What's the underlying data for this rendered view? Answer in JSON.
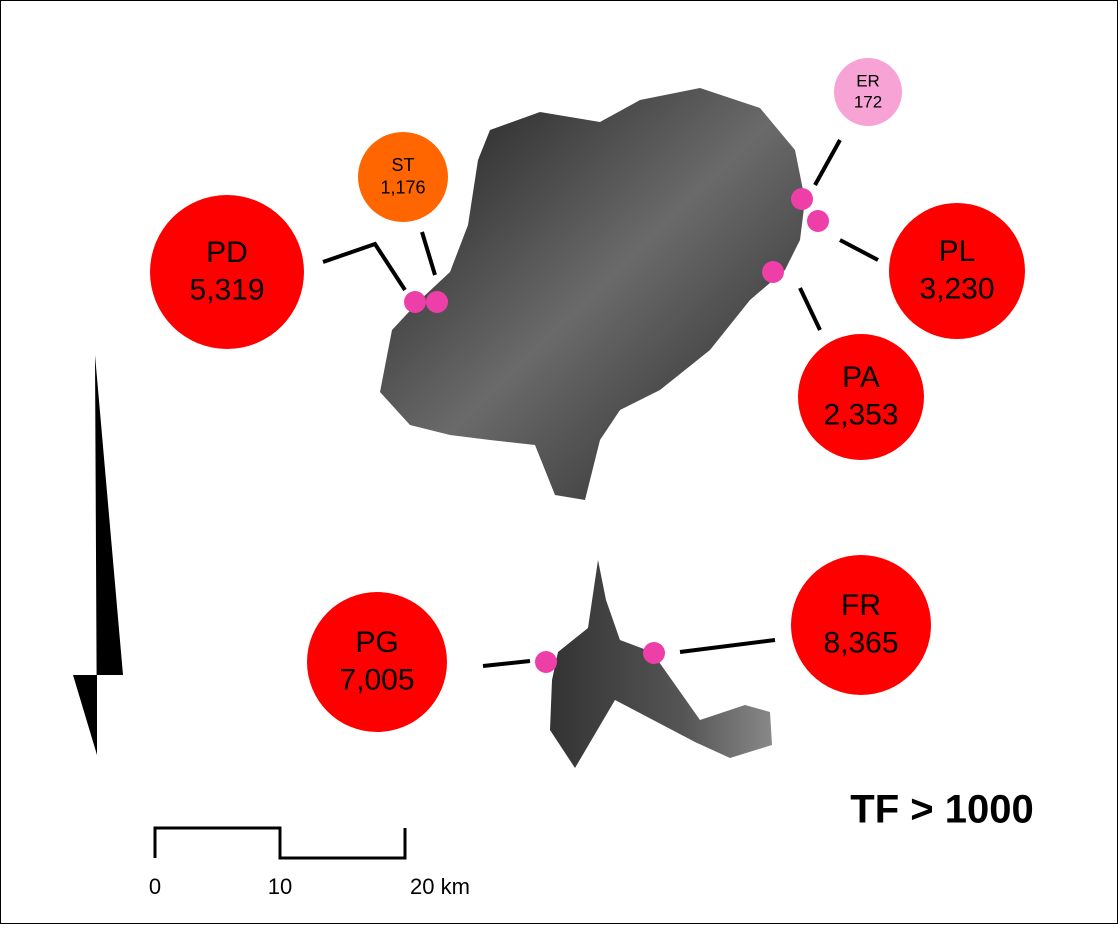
{
  "title": "TF > 1000",
  "sites": [
    {
      "code": "PD",
      "value": "5,319",
      "color": "#ff0000"
    },
    {
      "code": "ST",
      "value": "1,176",
      "color": "#ff6600"
    },
    {
      "code": "ER",
      "value": "172",
      "color": "#f7a3d6"
    },
    {
      "code": "PL",
      "value": "3,230",
      "color": "#ff0000"
    },
    {
      "code": "PA",
      "value": "2,353",
      "color": "#ff0000"
    },
    {
      "code": "PG",
      "value": "7,005",
      "color": "#ff0000"
    },
    {
      "code": "FR",
      "value": "8,365",
      "color": "#ff0000"
    }
  ],
  "scale_bar": {
    "labels": [
      "0",
      "10",
      "20 km"
    ]
  }
}
